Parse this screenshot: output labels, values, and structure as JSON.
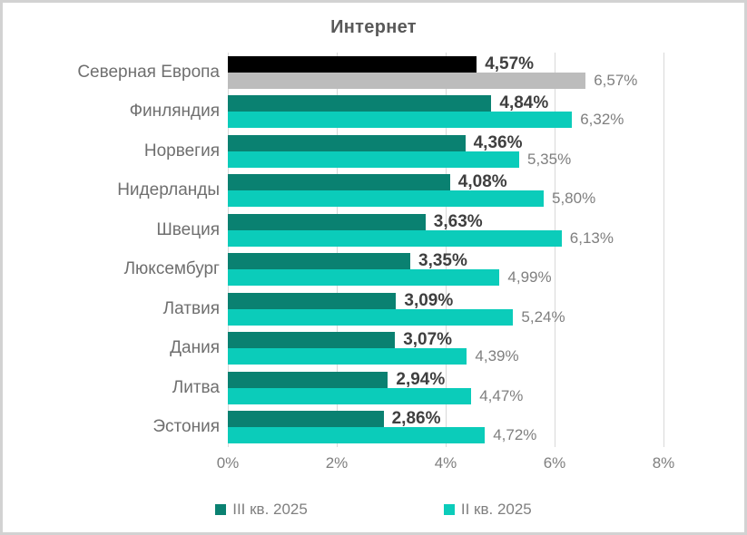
{
  "chart_data": {
    "type": "bar",
    "orientation": "horizontal",
    "title": "Интернет",
    "categories": [
      "Северная Европа",
      "Финляндия",
      "Норвегия",
      "Нидерланды",
      "Швеция",
      "Люксембург",
      "Латвия",
      "Дания",
      "Литва",
      "Эстония"
    ],
    "series": [
      {
        "name": "III кв. 2025",
        "color": "#0a8171",
        "highlight_color": "#000000",
        "values": [
          4.57,
          4.84,
          4.36,
          4.08,
          3.63,
          3.35,
          3.09,
          3.07,
          2.94,
          2.86
        ],
        "labels": [
          "4,57%",
          "4,84%",
          "4,36%",
          "4,08%",
          "3,63%",
          "3,35%",
          "3,09%",
          "3,07%",
          "2,94%",
          "2,86%"
        ]
      },
      {
        "name": "II кв. 2025",
        "color": "#0bccba",
        "highlight_color": "#bcbcbc",
        "values": [
          6.57,
          6.32,
          5.35,
          5.8,
          6.13,
          4.99,
          5.24,
          4.39,
          4.47,
          4.72
        ],
        "labels": [
          "6,57%",
          "6,32%",
          "5,35%",
          "5,80%",
          "6,13%",
          "4,99%",
          "5,24%",
          "4,39%",
          "4,47%",
          "4,72%"
        ]
      }
    ],
    "highlight_category": "Северная Европа",
    "x_axis": {
      "min": 0,
      "max": 8,
      "ticks": [
        "0%",
        "2%",
        "4%",
        "6%",
        "8%"
      ]
    },
    "gridlines": true,
    "legend_position": "bottom",
    "legend": [
      {
        "label": "III кв. 2025",
        "color": "#0a8171"
      },
      {
        "label": "II кв. 2025",
        "color": "#0bccba"
      }
    ],
    "colors": {
      "title": "#595959",
      "category_label": "#6f6f6f",
      "value_label_series1": "#3f3f3f",
      "value_label_series2": "#7f7f7f",
      "gridline": "#d9d9d9",
      "frame_border": "#d2d2d2",
      "background": "#ffffff"
    }
  }
}
